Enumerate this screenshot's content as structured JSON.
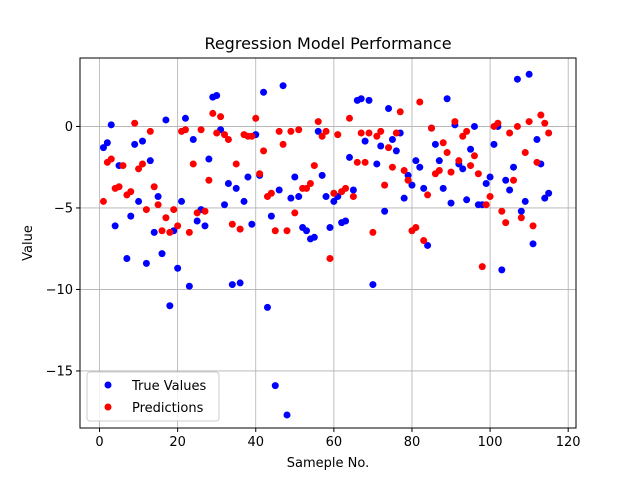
{
  "chart_data": {
    "type": "scatter",
    "title": "Regression Model Performance",
    "xlabel": "Sameple No.",
    "ylabel": "Value",
    "xlim": [
      -5,
      122
    ],
    "ylim": [
      -18.5,
      4.2
    ],
    "xticks": [
      0,
      20,
      40,
      60,
      80,
      100,
      120
    ],
    "yticks": [
      -15,
      -10,
      -5,
      0
    ],
    "ytick_labels": [
      "−15",
      "−10",
      "−5",
      "0"
    ],
    "grid": true,
    "legend_position": "lower-left",
    "series": [
      {
        "name": "True Values",
        "color": "#0000ff",
        "points": [
          [
            1,
            -1.3
          ],
          [
            2,
            -1.0
          ],
          [
            3,
            0.1
          ],
          [
            4,
            -6.1
          ],
          [
            5,
            -2.4
          ],
          [
            7,
            -8.1
          ],
          [
            8,
            -5.5
          ],
          [
            9,
            -1.1
          ],
          [
            10,
            -4.6
          ],
          [
            11,
            -0.9
          ],
          [
            12,
            -8.4
          ],
          [
            13,
            -2.1
          ],
          [
            14,
            -6.5
          ],
          [
            15,
            -4.3
          ],
          [
            16,
            -7.8
          ],
          [
            17,
            0.4
          ],
          [
            18,
            -11.0
          ],
          [
            19,
            -6.4
          ],
          [
            20,
            -8.7
          ],
          [
            21,
            -4.6
          ],
          [
            22,
            0.5
          ],
          [
            23,
            -9.8
          ],
          [
            24,
            -0.8
          ],
          [
            25,
            -5.8
          ],
          [
            26,
            -5.1
          ],
          [
            27,
            -6.1
          ],
          [
            28,
            -2.0
          ],
          [
            29,
            1.8
          ],
          [
            30,
            1.9
          ],
          [
            31,
            -0.2
          ],
          [
            32,
            -4.8
          ],
          [
            33,
            -3.5
          ],
          [
            34,
            -9.7
          ],
          [
            35,
            -3.8
          ],
          [
            36,
            -9.6
          ],
          [
            37,
            -4.6
          ],
          [
            38,
            -3.1
          ],
          [
            39,
            -6.0
          ],
          [
            40,
            -0.5
          ],
          [
            41,
            -3.0
          ],
          [
            42,
            2.1
          ],
          [
            43,
            -11.1
          ],
          [
            44,
            -5.5
          ],
          [
            45,
            -15.9
          ],
          [
            46,
            -3.9
          ],
          [
            47,
            2.5
          ],
          [
            48,
            -17.7
          ],
          [
            49,
            -4.4
          ],
          [
            50,
            -3.1
          ],
          [
            51,
            -4.3
          ],
          [
            52,
            -6.2
          ],
          [
            53,
            -6.4
          ],
          [
            54,
            -6.9
          ],
          [
            55,
            -6.8
          ],
          [
            56,
            -0.3
          ],
          [
            57,
            -3.0
          ],
          [
            58,
            -4.3
          ],
          [
            59,
            -6.2
          ],
          [
            60,
            -4.6
          ],
          [
            61,
            -4.3
          ],
          [
            62,
            -5.9
          ],
          [
            63,
            -5.8
          ],
          [
            64,
            -1.9
          ],
          [
            65,
            -3.9
          ],
          [
            66,
            1.6
          ],
          [
            67,
            1.7
          ],
          [
            68,
            -0.9
          ],
          [
            69,
            1.6
          ],
          [
            70,
            -9.7
          ],
          [
            71,
            -2.3
          ],
          [
            72,
            -1.2
          ],
          [
            73,
            -5.2
          ],
          [
            74,
            1.1
          ],
          [
            75,
            -0.8
          ],
          [
            76,
            -1.5
          ],
          [
            77,
            -0.4
          ],
          [
            78,
            -4.4
          ],
          [
            79,
            -3.0
          ],
          [
            80,
            -3.6
          ],
          [
            81,
            -2.1
          ],
          [
            82,
            -2.5
          ],
          [
            83,
            -3.8
          ],
          [
            84,
            -7.3
          ],
          [
            85,
            -0.1
          ],
          [
            86,
            -1.1
          ],
          [
            87,
            -2.1
          ],
          [
            88,
            -3.8
          ],
          [
            89,
            1.7
          ],
          [
            90,
            -4.7
          ],
          [
            91,
            0.1
          ],
          [
            92,
            -2.3
          ],
          [
            93,
            -2.6
          ],
          [
            94,
            -4.5
          ],
          [
            95,
            -1.4
          ],
          [
            96,
            0.0
          ],
          [
            97,
            -4.8
          ],
          [
            98,
            -4.8
          ],
          [
            99,
            -3.5
          ],
          [
            100,
            -3.1
          ],
          [
            101,
            -1.1
          ],
          [
            102,
            0.0
          ],
          [
            103,
            -8.8
          ],
          [
            104,
            -3.3
          ],
          [
            105,
            -3.9
          ],
          [
            106,
            -2.5
          ],
          [
            107,
            2.9
          ],
          [
            108,
            -5.2
          ],
          [
            109,
            -4.6
          ],
          [
            110,
            3.2
          ],
          [
            111,
            -7.2
          ],
          [
            112,
            -0.8
          ],
          [
            113,
            -2.3
          ],
          [
            114,
            -4.4
          ],
          [
            115,
            -4.1
          ]
        ]
      },
      {
        "name": "Predictions",
        "color": "#ff0000",
        "points": [
          [
            1,
            -4.6
          ],
          [
            2,
            -2.2
          ],
          [
            3,
            -2.0
          ],
          [
            4,
            -3.8
          ],
          [
            5,
            -3.7
          ],
          [
            6,
            -2.4
          ],
          [
            7,
            -4.2
          ],
          [
            8,
            -4.0
          ],
          [
            9,
            0.2
          ],
          [
            10,
            -2.6
          ],
          [
            11,
            -2.3
          ],
          [
            12,
            -5.1
          ],
          [
            13,
            -0.3
          ],
          [
            14,
            -3.7
          ],
          [
            15,
            -4.8
          ],
          [
            16,
            -6.4
          ],
          [
            17,
            -5.6
          ],
          [
            18,
            -6.5
          ],
          [
            19,
            -5.1
          ],
          [
            20,
            -6.1
          ],
          [
            21,
            -0.3
          ],
          [
            22,
            -0.2
          ],
          [
            23,
            -6.5
          ],
          [
            24,
            -2.3
          ],
          [
            25,
            -5.3
          ],
          [
            26,
            -0.2
          ],
          [
            27,
            -5.2
          ],
          [
            28,
            -3.3
          ],
          [
            29,
            0.8
          ],
          [
            30,
            -0.4
          ],
          [
            31,
            0.6
          ],
          [
            32,
            -0.5
          ],
          [
            33,
            -0.8
          ],
          [
            34,
            -6.0
          ],
          [
            35,
            -2.3
          ],
          [
            36,
            -6.3
          ],
          [
            37,
            -0.5
          ],
          [
            38,
            -0.6
          ],
          [
            39,
            -0.6
          ],
          [
            40,
            0.5
          ],
          [
            41,
            -2.9
          ],
          [
            42,
            -1.5
          ],
          [
            43,
            -4.3
          ],
          [
            44,
            -4.1
          ],
          [
            45,
            -6.4
          ],
          [
            46,
            -0.3
          ],
          [
            47,
            -1.1
          ],
          [
            48,
            -6.4
          ],
          [
            49,
            -0.3
          ],
          [
            50,
            -5.3
          ],
          [
            51,
            -0.2
          ],
          [
            52,
            -3.8
          ],
          [
            53,
            -3.8
          ],
          [
            54,
            -3.5
          ],
          [
            55,
            -2.4
          ],
          [
            56,
            0.3
          ],
          [
            57,
            -0.6
          ],
          [
            58,
            -0.3
          ],
          [
            59,
            -8.1
          ],
          [
            60,
            -4.1
          ],
          [
            61,
            -0.5
          ],
          [
            62,
            -4.0
          ],
          [
            63,
            -3.8
          ],
          [
            64,
            0.5
          ],
          [
            65,
            -4.3
          ],
          [
            66,
            -2.2
          ],
          [
            67,
            -0.4
          ],
          [
            68,
            -2.2
          ],
          [
            69,
            -0.4
          ],
          [
            70,
            -6.5
          ],
          [
            71,
            -0.6
          ],
          [
            72,
            -0.3
          ],
          [
            73,
            -3.6
          ],
          [
            74,
            -1.3
          ],
          [
            75,
            -2.5
          ],
          [
            76,
            -0.4
          ],
          [
            77,
            0.9
          ],
          [
            78,
            -2.7
          ],
          [
            79,
            -3.3
          ],
          [
            80,
            -6.4
          ],
          [
            81,
            -6.2
          ],
          [
            82,
            1.5
          ],
          [
            83,
            -7.0
          ],
          [
            84,
            -4.2
          ],
          [
            85,
            -0.1
          ],
          [
            86,
            -2.9
          ],
          [
            87,
            -2.7
          ],
          [
            88,
            -1.0
          ],
          [
            89,
            -1.6
          ],
          [
            90,
            -2.8
          ],
          [
            91,
            0.3
          ],
          [
            92,
            -2.1
          ],
          [
            93,
            -0.6
          ],
          [
            94,
            -0.3
          ],
          [
            95,
            -2.4
          ],
          [
            96,
            -1.8
          ],
          [
            97,
            -2.9
          ],
          [
            98,
            -8.6
          ],
          [
            99,
            -4.8
          ],
          [
            100,
            -4.3
          ],
          [
            101,
            0.0
          ],
          [
            102,
            0.2
          ],
          [
            103,
            -5.2
          ],
          [
            104,
            -5.9
          ],
          [
            105,
            -0.4
          ],
          [
            106,
            -3.3
          ],
          [
            107,
            0.0
          ],
          [
            108,
            -5.6
          ],
          [
            109,
            -1.6
          ],
          [
            110,
            0.3
          ],
          [
            111,
            -6.1
          ],
          [
            112,
            -2.2
          ],
          [
            113,
            0.7
          ],
          [
            114,
            0.2
          ],
          [
            115,
            -0.4
          ]
        ]
      }
    ]
  }
}
